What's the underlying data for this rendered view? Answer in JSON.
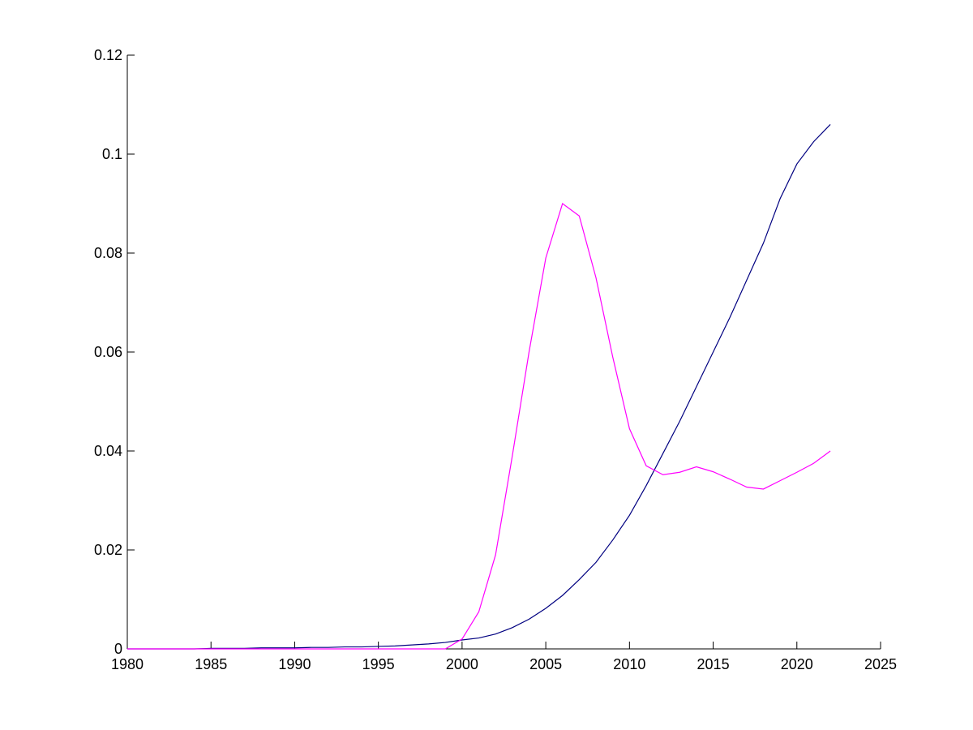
{
  "chart_data": {
    "type": "line",
    "x": [
      1980,
      1981,
      1982,
      1983,
      1984,
      1985,
      1986,
      1987,
      1988,
      1989,
      1990,
      1991,
      1992,
      1993,
      1994,
      1995,
      1996,
      1997,
      1998,
      1999,
      2000,
      2001,
      2002,
      2003,
      2004,
      2005,
      2006,
      2007,
      2008,
      2009,
      2010,
      2011,
      2012,
      2013,
      2014,
      2015,
      2016,
      2017,
      2018,
      2019,
      2020,
      2021,
      2022
    ],
    "series": [
      {
        "color": "#000080",
        "values": [
          0,
          0,
          0,
          0,
          0,
          0.0001,
          0.0001,
          0.0001,
          0.0002,
          0.0002,
          0.0002,
          0.0003,
          0.0003,
          0.0004,
          0.0004,
          0.0005,
          0.0006,
          0.0008,
          0.001,
          0.0013,
          0.0018,
          0.0022,
          0.003,
          0.0043,
          0.006,
          0.0082,
          0.0108,
          0.014,
          0.0175,
          0.022,
          0.027,
          0.033,
          0.0395,
          0.046,
          0.053,
          0.06,
          0.067,
          0.0745,
          0.082,
          0.091,
          0.098,
          0.1025,
          0.106
        ]
      },
      {
        "color": "#ff00ff",
        "values": [
          0,
          0,
          0,
          0,
          0,
          0,
          0,
          0,
          0,
          0,
          0,
          0,
          0,
          0,
          0,
          0,
          0,
          0,
          0,
          0,
          0.002,
          0.0075,
          0.019,
          0.039,
          0.06,
          0.079,
          0.09,
          0.0875,
          0.075,
          0.059,
          0.0445,
          0.037,
          0.0352,
          0.0357,
          0.0368,
          0.0358,
          0.0343,
          0.0327,
          0.0323,
          0.034,
          0.0357,
          0.0375,
          0.04
        ]
      }
    ],
    "xlim": [
      1980,
      2025
    ],
    "xticks": [
      1980,
      1985,
      1990,
      1995,
      2000,
      2005,
      2010,
      2015,
      2020,
      2025
    ],
    "ylim": [
      0,
      0.12
    ],
    "yticks": [
      0,
      0.02,
      0.04,
      0.06,
      0.08,
      0.1,
      0.12
    ],
    "grid": false
  }
}
